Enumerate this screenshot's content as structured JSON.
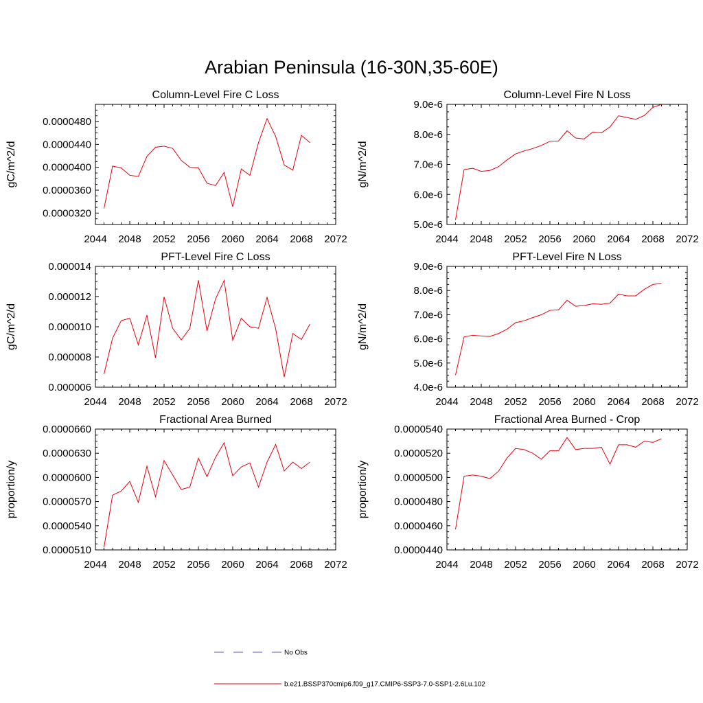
{
  "figure": {
    "title": "Arabian Peninsula (16-30N,35-60E)"
  },
  "legend": {
    "items": [
      {
        "label": "No Obs",
        "color": "#5b5bc8",
        "style": "dashed"
      },
      {
        "label": "b.e21.BSSP370cmip6.f09_g17.CMIP6-SSP3-7.0-SSP1-2.6Lu.102",
        "color": "#e8000b",
        "style": "solid"
      }
    ]
  },
  "chart_data": [
    {
      "type": "line",
      "title": "Column-Level Fire C Loss",
      "ylabel": "gC/m^2/d",
      "xlim": [
        2044,
        2072
      ],
      "ylim": [
        3e-05,
        5.1e-05
      ],
      "xticks": [
        2044,
        2048,
        2052,
        2056,
        2060,
        2064,
        2068,
        2072
      ],
      "xtick_labels": [
        "2044",
        "2048",
        "2052",
        "2056",
        "2060",
        "2064",
        "2068",
        "2072"
      ],
      "yticks": [
        3.2e-05,
        3.6e-05,
        4e-05,
        4.4e-05,
        4.8e-05
      ],
      "ytick_labels": [
        "0.0000320",
        "0.0000360",
        "0.0000400",
        "0.0000440",
        "0.0000480"
      ],
      "color": "#e8000b",
      "x": [
        2045,
        2046,
        2047,
        2048,
        2049,
        2050,
        2051,
        2052,
        2053,
        2054,
        2055,
        2056,
        2057,
        2058,
        2059,
        2060,
        2061,
        2062,
        2063,
        2064,
        2065,
        2066,
        2067,
        2068,
        2069
      ],
      "y": [
        3.28e-05,
        4.02e-05,
        3.99e-05,
        3.86e-05,
        3.84e-05,
        4.19e-05,
        4.35e-05,
        4.37e-05,
        4.33e-05,
        4.12e-05,
        4e-05,
        3.99e-05,
        3.72e-05,
        3.68e-05,
        3.91e-05,
        3.31e-05,
        3.97e-05,
        3.86e-05,
        4.43e-05,
        4.85e-05,
        4.54e-05,
        4.04e-05,
        3.95e-05,
        4.56e-05,
        4.43e-05
      ]
    },
    {
      "type": "line",
      "title": "Column-Level Fire N Loss",
      "ylabel": "gN/m^2/d",
      "xlim": [
        2044,
        2072
      ],
      "ylim": [
        5e-06,
        9e-06
      ],
      "xticks": [
        2044,
        2048,
        2052,
        2056,
        2060,
        2064,
        2068,
        2072
      ],
      "xtick_labels": [
        "2044",
        "2048",
        "2052",
        "2056",
        "2060",
        "2064",
        "2068",
        "2072"
      ],
      "yticks": [
        5e-06,
        6e-06,
        7e-06,
        8e-06,
        9e-06
      ],
      "ytick_labels": [
        "5.0e-6",
        "6.0e-6",
        "7.0e-6",
        "8.0e-6",
        "9.0e-6"
      ],
      "color": "#e8000b",
      "x": [
        2045,
        2046,
        2047,
        2048,
        2049,
        2050,
        2051,
        2052,
        2053,
        2054,
        2055,
        2056,
        2057,
        2058,
        2059,
        2060,
        2061,
        2062,
        2063,
        2064,
        2065,
        2066,
        2067,
        2068,
        2069
      ],
      "y": [
        5.15e-06,
        6.83e-06,
        6.87e-06,
        6.77e-06,
        6.8e-06,
        6.92e-06,
        7.15e-06,
        7.35e-06,
        7.45e-06,
        7.53e-06,
        7.63e-06,
        7.77e-06,
        7.78e-06,
        8.12e-06,
        7.88e-06,
        7.85e-06,
        8.08e-06,
        8.05e-06,
        8.25e-06,
        8.62e-06,
        8.56e-06,
        8.5e-06,
        8.63e-06,
        8.9e-06,
        9e-06
      ]
    },
    {
      "type": "line",
      "title": "PFT-Level Fire C Loss",
      "ylabel": "gC/m^2/d",
      "xlim": [
        2044,
        2072
      ],
      "ylim": [
        6e-06,
        1.4e-05
      ],
      "xticks": [
        2044,
        2048,
        2052,
        2056,
        2060,
        2064,
        2068,
        2072
      ],
      "xtick_labels": [
        "2044",
        "2048",
        "2052",
        "2056",
        "2060",
        "2064",
        "2068",
        "2072"
      ],
      "yticks": [
        6e-06,
        8e-06,
        1e-05,
        1.2e-05,
        1.4e-05
      ],
      "ytick_labels": [
        "0.000006",
        "0.000008",
        "0.000010",
        "0.000012",
        "0.000014"
      ],
      "color": "#e8000b",
      "x": [
        2045,
        2046,
        2047,
        2048,
        2049,
        2050,
        2051,
        2052,
        2053,
        2054,
        2055,
        2056,
        2057,
        2058,
        2059,
        2060,
        2061,
        2062,
        2063,
        2064,
        2065,
        2066,
        2067,
        2068,
        2069
      ],
      "y": [
        6.87e-06,
        9.25e-06,
        1.04e-05,
        1.057e-05,
        8.8e-06,
        1.078e-05,
        7.95e-06,
        1.198e-05,
        9.9e-06,
        9.13e-06,
        9.89e-06,
        1.308e-05,
        9.72e-06,
        1.185e-05,
        1.307e-05,
        9.11e-06,
        1.056e-05,
        1e-05,
        9.9e-06,
        1.195e-05,
        9.88e-06,
        6.67e-06,
        9.55e-06,
        9.16e-06,
        1.018e-05
      ]
    },
    {
      "type": "line",
      "title": "PFT-Level Fire N Loss",
      "ylabel": "gN/m^2/d",
      "xlim": [
        2044,
        2072
      ],
      "ylim": [
        4e-06,
        9e-06
      ],
      "xticks": [
        2044,
        2048,
        2052,
        2056,
        2060,
        2064,
        2068,
        2072
      ],
      "xtick_labels": [
        "2044",
        "2048",
        "2052",
        "2056",
        "2060",
        "2064",
        "2068",
        "2072"
      ],
      "yticks": [
        4e-06,
        5e-06,
        6e-06,
        7e-06,
        8e-06,
        9e-06
      ],
      "ytick_labels": [
        "4.0e-6",
        "5.0e-6",
        "6.0e-6",
        "7.0e-6",
        "8.0e-6",
        "9.0e-6"
      ],
      "color": "#e8000b",
      "x": [
        2045,
        2046,
        2047,
        2048,
        2049,
        2050,
        2051,
        2052,
        2053,
        2054,
        2055,
        2056,
        2057,
        2058,
        2059,
        2060,
        2061,
        2062,
        2063,
        2064,
        2065,
        2066,
        2067,
        2068,
        2069
      ],
      "y": [
        4.5e-06,
        6.08e-06,
        6.15e-06,
        6.12e-06,
        6.1e-06,
        6.22e-06,
        6.4e-06,
        6.67e-06,
        6.75e-06,
        6.88e-06,
        7e-06,
        7.18e-06,
        7.2e-06,
        7.6e-06,
        7.35e-06,
        7.38e-06,
        7.45e-06,
        7.43e-06,
        7.48e-06,
        7.85e-06,
        7.78e-06,
        7.78e-06,
        8.05e-06,
        8.25e-06,
        8.3e-06
      ]
    },
    {
      "type": "line",
      "title": "Fractional Area Burned",
      "ylabel": "proportion/y",
      "xlim": [
        2044,
        2072
      ],
      "ylim": [
        5.1e-05,
        6.6e-05
      ],
      "xticks": [
        2044,
        2048,
        2052,
        2056,
        2060,
        2064,
        2068,
        2072
      ],
      "xtick_labels": [
        "2044",
        "2048",
        "2052",
        "2056",
        "2060",
        "2064",
        "2068",
        "2072"
      ],
      "yticks": [
        5.1e-05,
        5.4e-05,
        5.7e-05,
        6e-05,
        6.3e-05,
        6.6e-05
      ],
      "ytick_labels": [
        "0.0000510",
        "0.0000540",
        "0.0000570",
        "0.0000600",
        "0.0000630",
        "0.0000660"
      ],
      "color": "#e8000b",
      "x": [
        2045,
        2046,
        2047,
        2048,
        2049,
        2050,
        2051,
        2052,
        2053,
        2054,
        2055,
        2056,
        2057,
        2058,
        2059,
        2060,
        2061,
        2062,
        2063,
        2064,
        2065,
        2066,
        2067,
        2068,
        2069
      ],
      "y": [
        5.13e-05,
        5.78e-05,
        5.83e-05,
        5.95e-05,
        5.69e-05,
        6.14e-05,
        5.76e-05,
        6.21e-05,
        6.03e-05,
        5.85e-05,
        5.88e-05,
        6.24e-05,
        6.01e-05,
        6.25e-05,
        6.43e-05,
        6.02e-05,
        6.13e-05,
        6.18e-05,
        5.88e-05,
        6.19e-05,
        6.41e-05,
        6.08e-05,
        6.19e-05,
        6.11e-05,
        6.19e-05
      ]
    },
    {
      "type": "line",
      "title": "Fractional Area Burned - Crop",
      "ylabel": "proportion/y",
      "xlim": [
        2044,
        2072
      ],
      "ylim": [
        4.4e-05,
        5.4e-05
      ],
      "xticks": [
        2044,
        2048,
        2052,
        2056,
        2060,
        2064,
        2068,
        2072
      ],
      "xtick_labels": [
        "2044",
        "2048",
        "2052",
        "2056",
        "2060",
        "2064",
        "2068",
        "2072"
      ],
      "yticks": [
        4.4e-05,
        4.6e-05,
        4.8e-05,
        5e-05,
        5.2e-05,
        5.4e-05
      ],
      "ytick_labels": [
        "0.0000440",
        "0.0000460",
        "0.0000480",
        "0.0000500",
        "0.0000520",
        "0.0000540"
      ],
      "color": "#e8000b",
      "x": [
        2045,
        2046,
        2047,
        2048,
        2049,
        2050,
        2051,
        2052,
        2053,
        2054,
        2055,
        2056,
        2057,
        2058,
        2059,
        2060,
        2061,
        2062,
        2063,
        2064,
        2065,
        2066,
        2067,
        2068,
        2069
      ],
      "y": [
        4.57e-05,
        5.01e-05,
        5.02e-05,
        5.01e-05,
        4.99e-05,
        5.05e-05,
        5.16e-05,
        5.24e-05,
        5.23e-05,
        5.2e-05,
        5.15e-05,
        5.22e-05,
        5.22e-05,
        5.33e-05,
        5.23e-05,
        5.24e-05,
        5.24e-05,
        5.25e-05,
        5.11e-05,
        5.27e-05,
        5.27e-05,
        5.25e-05,
        5.3e-05,
        5.29e-05,
        5.32e-05
      ]
    }
  ]
}
